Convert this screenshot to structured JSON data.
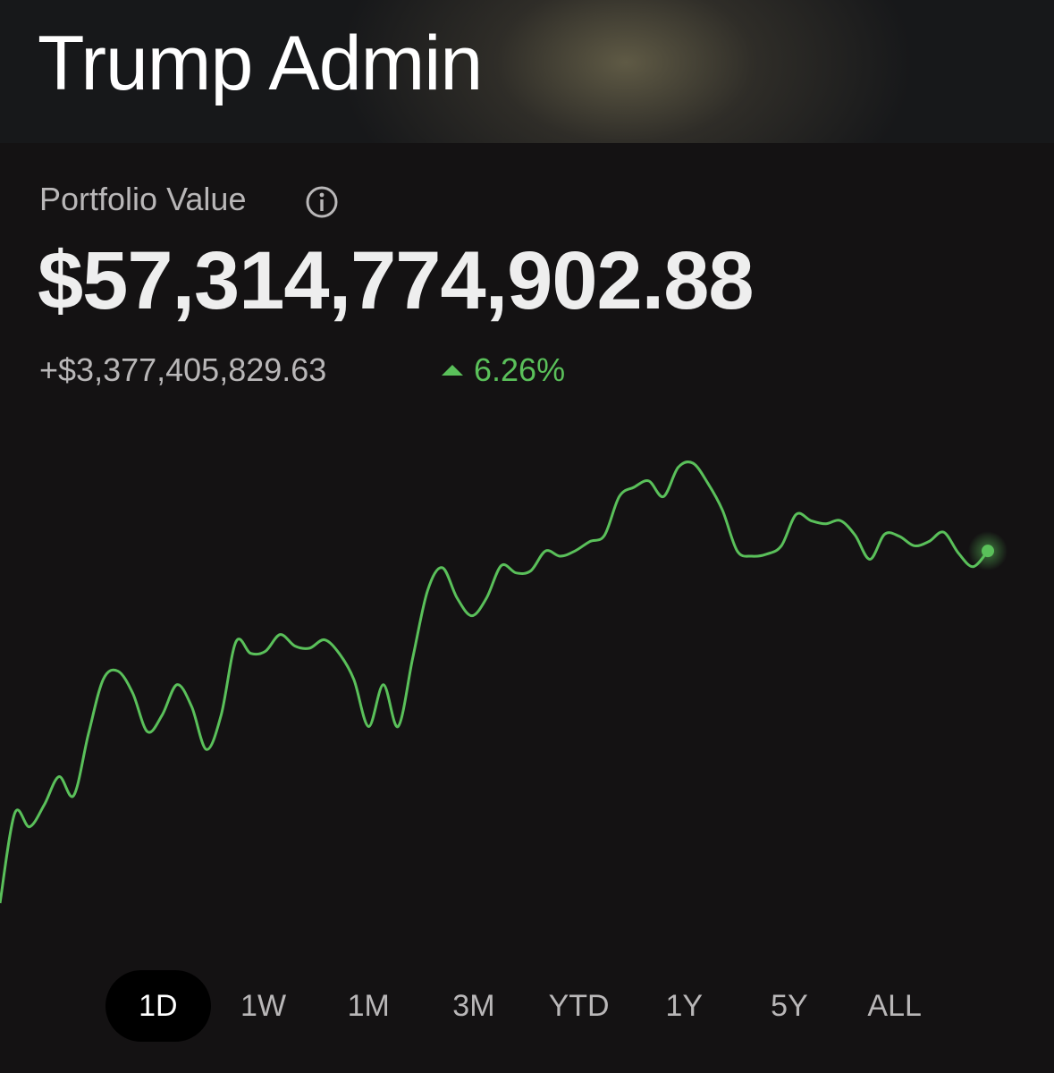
{
  "header": {
    "title": "Trump Admin"
  },
  "portfolio": {
    "label": "Portfolio Value",
    "value": "$57,314,774,902.88",
    "change": "+$3,377,405,829.63",
    "change_percent": "6.26%"
  },
  "chart_data": {
    "type": "line",
    "color": "#5ac05a",
    "values": [
      53940000000,
      54800000000,
      54670000000,
      54880000000,
      55150000000,
      54970000000,
      55560000000,
      56080000000,
      56160000000,
      55950000000,
      55580000000,
      55740000000,
      56030000000,
      55820000000,
      55410000000,
      55740000000,
      56440000000,
      56330000000,
      56350000000,
      56510000000,
      56400000000,
      56380000000,
      56460000000,
      56330000000,
      56080000000,
      55630000000,
      56030000000,
      55630000000,
      56290000000,
      56930000000,
      57150000000,
      56860000000,
      56690000000,
      56860000000,
      57170000000,
      57100000000,
      57120000000,
      57310000000,
      57260000000,
      57310000000,
      57400000000,
      57460000000,
      57830000000,
      57920000000,
      57980000000,
      57830000000,
      58110000000,
      58150000000,
      57960000000,
      57700000000,
      57310000000,
      57260000000,
      57280000000,
      57360000000,
      57660000000,
      57600000000,
      57570000000,
      57600000000,
      57460000000,
      57230000000,
      57470000000,
      57450000000,
      57360000000,
      57400000000,
      57490000000,
      57290000000,
      57160000000,
      57310000000
    ]
  },
  "periods": [
    "1D",
    "1W",
    "1M",
    "3M",
    "YTD",
    "1Y",
    "5Y",
    "ALL"
  ]
}
